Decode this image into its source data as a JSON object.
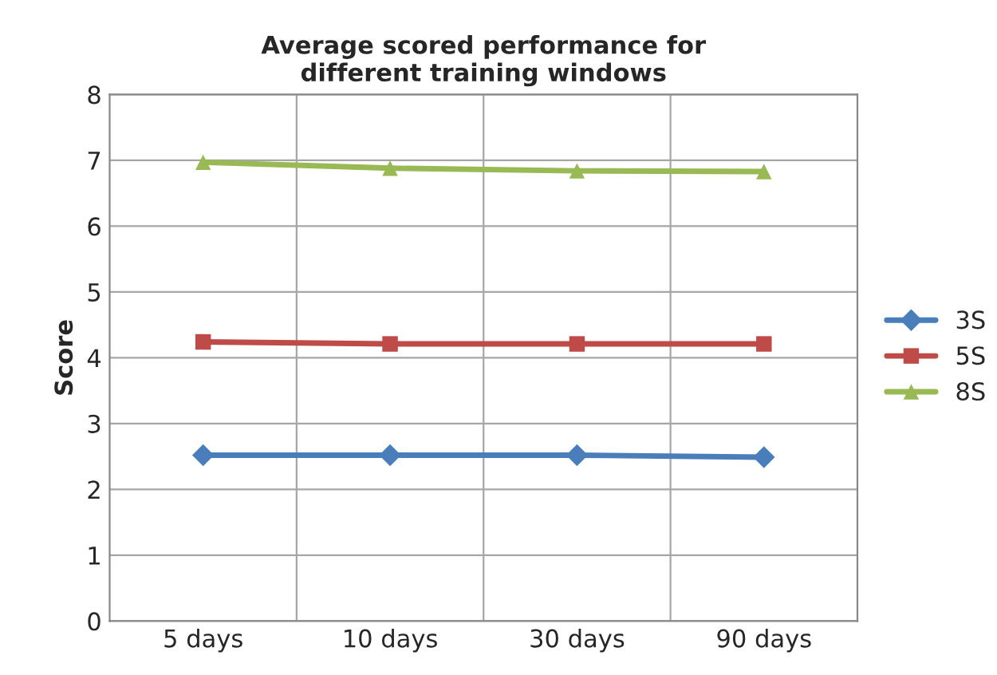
{
  "chart_data": {
    "type": "line",
    "title": "Average scored performance for\ndifferent training windows",
    "ylabel": "Score",
    "categories": [
      "5 days",
      "10 days",
      "30 days",
      "90 days"
    ],
    "series": [
      {
        "name": "3S",
        "color": "#4a7ebb",
        "marker": "diamond",
        "values": [
          2.52,
          2.52,
          2.52,
          2.49
        ]
      },
      {
        "name": "5S",
        "color": "#be4b48",
        "marker": "square",
        "values": [
          4.24,
          4.21,
          4.21,
          4.21
        ]
      },
      {
        "name": "8S",
        "color": "#98b954",
        "marker": "triangle",
        "values": [
          6.97,
          6.88,
          6.84,
          6.83
        ]
      }
    ],
    "ylim": [
      0,
      8
    ],
    "yticks": [
      0,
      1,
      2,
      3,
      4,
      5,
      6,
      7,
      8
    ],
    "grid": true,
    "legend": "right",
    "line_style": "solid"
  }
}
